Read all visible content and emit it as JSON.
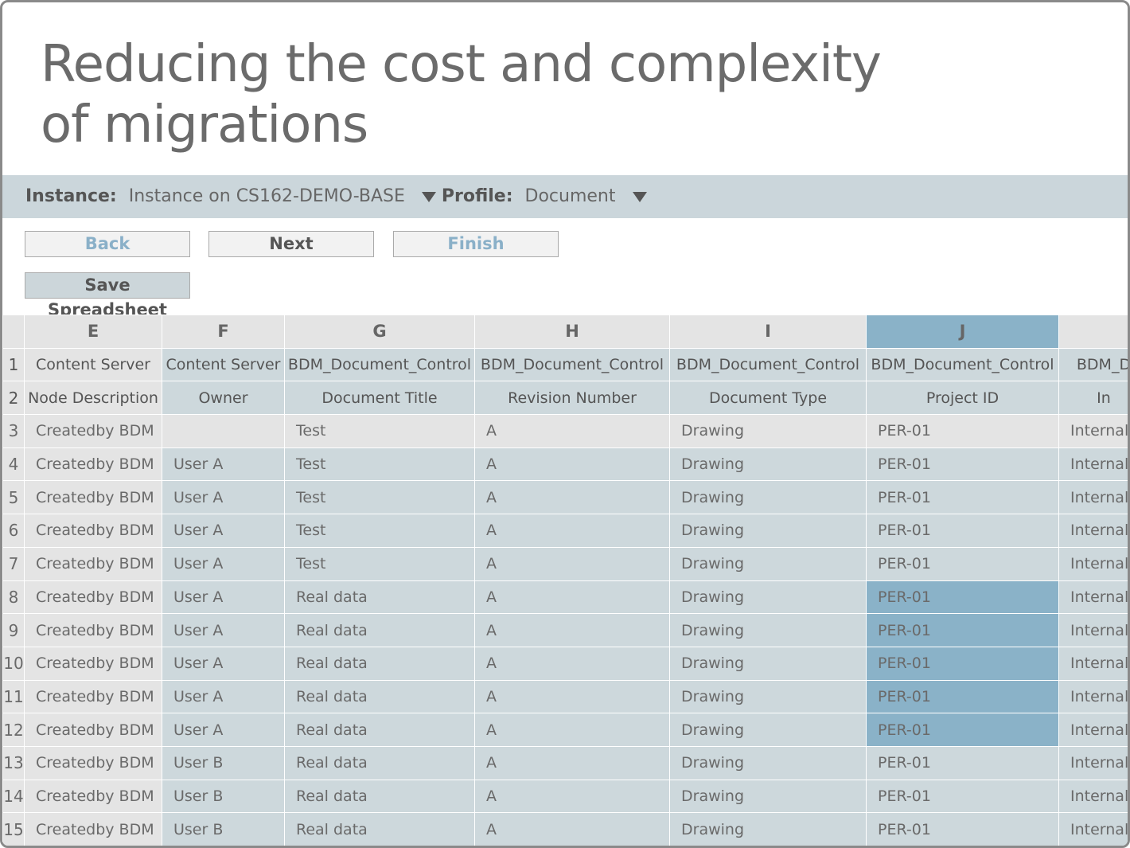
{
  "header": {
    "title_lines": [
      "Reducing the cost and complexity",
      "of migrations"
    ]
  },
  "toolbar": {
    "instance_label": "Instance:",
    "instance_value": "Instance on CS162-DEMO-BASE",
    "profile_label": "Profile:",
    "profile_value": "Document"
  },
  "buttons": {
    "back": "Back",
    "next": "Next",
    "finish": "Finish",
    "save": "Save Spreadsheet"
  },
  "table": {
    "columns": [
      "E",
      "F",
      "G",
      "H",
      "I",
      "J",
      null
    ],
    "rows": [
      {
        "number": 1,
        "cells": [
          "Content Server",
          "Content Server",
          "BDM_Document_Control",
          "BDM_Document_Control",
          "BDM_Document_Control",
          "BDM_Document_Control",
          "BDM_D"
        ]
      },
      {
        "number": 2,
        "cells": [
          "Node Description",
          "Owner",
          "Document Title",
          "Revision Number",
          "Document Type",
          "Project ID",
          "In"
        ]
      },
      {
        "number": 3,
        "cells": [
          "Createdby BDM",
          null,
          "Test",
          "A",
          "Drawing",
          "PER-01",
          "Internal"
        ]
      },
      {
        "number": 4,
        "cells": [
          "Createdby BDM",
          "User A",
          "Test",
          "A",
          "Drawing",
          "PER-01",
          "Internal"
        ]
      },
      {
        "number": 5,
        "cells": [
          "Createdby BDM",
          "User A",
          "Test",
          "A",
          "Drawing",
          "PER-01",
          "Internal"
        ]
      },
      {
        "number": 6,
        "cells": [
          "Createdby BDM",
          "User A",
          "Test",
          "A",
          "Drawing",
          "PER-01",
          "Internal"
        ]
      },
      {
        "number": 7,
        "cells": [
          "Createdby BDM",
          "User A",
          "Test",
          "A",
          "Drawing",
          "PER-01",
          "Internal"
        ]
      },
      {
        "number": 8,
        "cells": [
          "Createdby BDM",
          "User A",
          "Real data",
          "A",
          "Drawing",
          "PER-01",
          "Internal"
        ]
      },
      {
        "number": 9,
        "cells": [
          "Createdby BDM",
          "User A",
          "Real data",
          "A",
          "Drawing",
          "PER-01",
          "Internal"
        ]
      },
      {
        "number": 10,
        "cells": [
          "Createdby BDM",
          "User A",
          "Real data",
          "A",
          "Drawing",
          "PER-01",
          "Internal"
        ]
      },
      {
        "number": 11,
        "cells": [
          "Createdby BDM",
          "User A",
          "Real data",
          "A",
          "Drawing",
          "PER-01",
          "Internal"
        ]
      },
      {
        "number": 12,
        "cells": [
          "Createdby BDM",
          "User A",
          "Real data",
          "A",
          "Drawing",
          "PER-01",
          "Internal"
        ]
      },
      {
        "number": 13,
        "cells": [
          "Createdby BDM",
          "User B",
          "Real data",
          "A",
          "Drawing",
          "PER-01",
          "Internal"
        ]
      },
      {
        "number": 14,
        "cells": [
          "Createdby BDM",
          "User B",
          "Real data",
          "A",
          "Drawing",
          "PER-01",
          "Internal"
        ]
      },
      {
        "number": 15,
        "cells": [
          "Createdby BDM",
          "User B",
          "Real data",
          "A",
          "Drawing",
          "PER-01",
          "Internal"
        ]
      }
    ]
  }
}
